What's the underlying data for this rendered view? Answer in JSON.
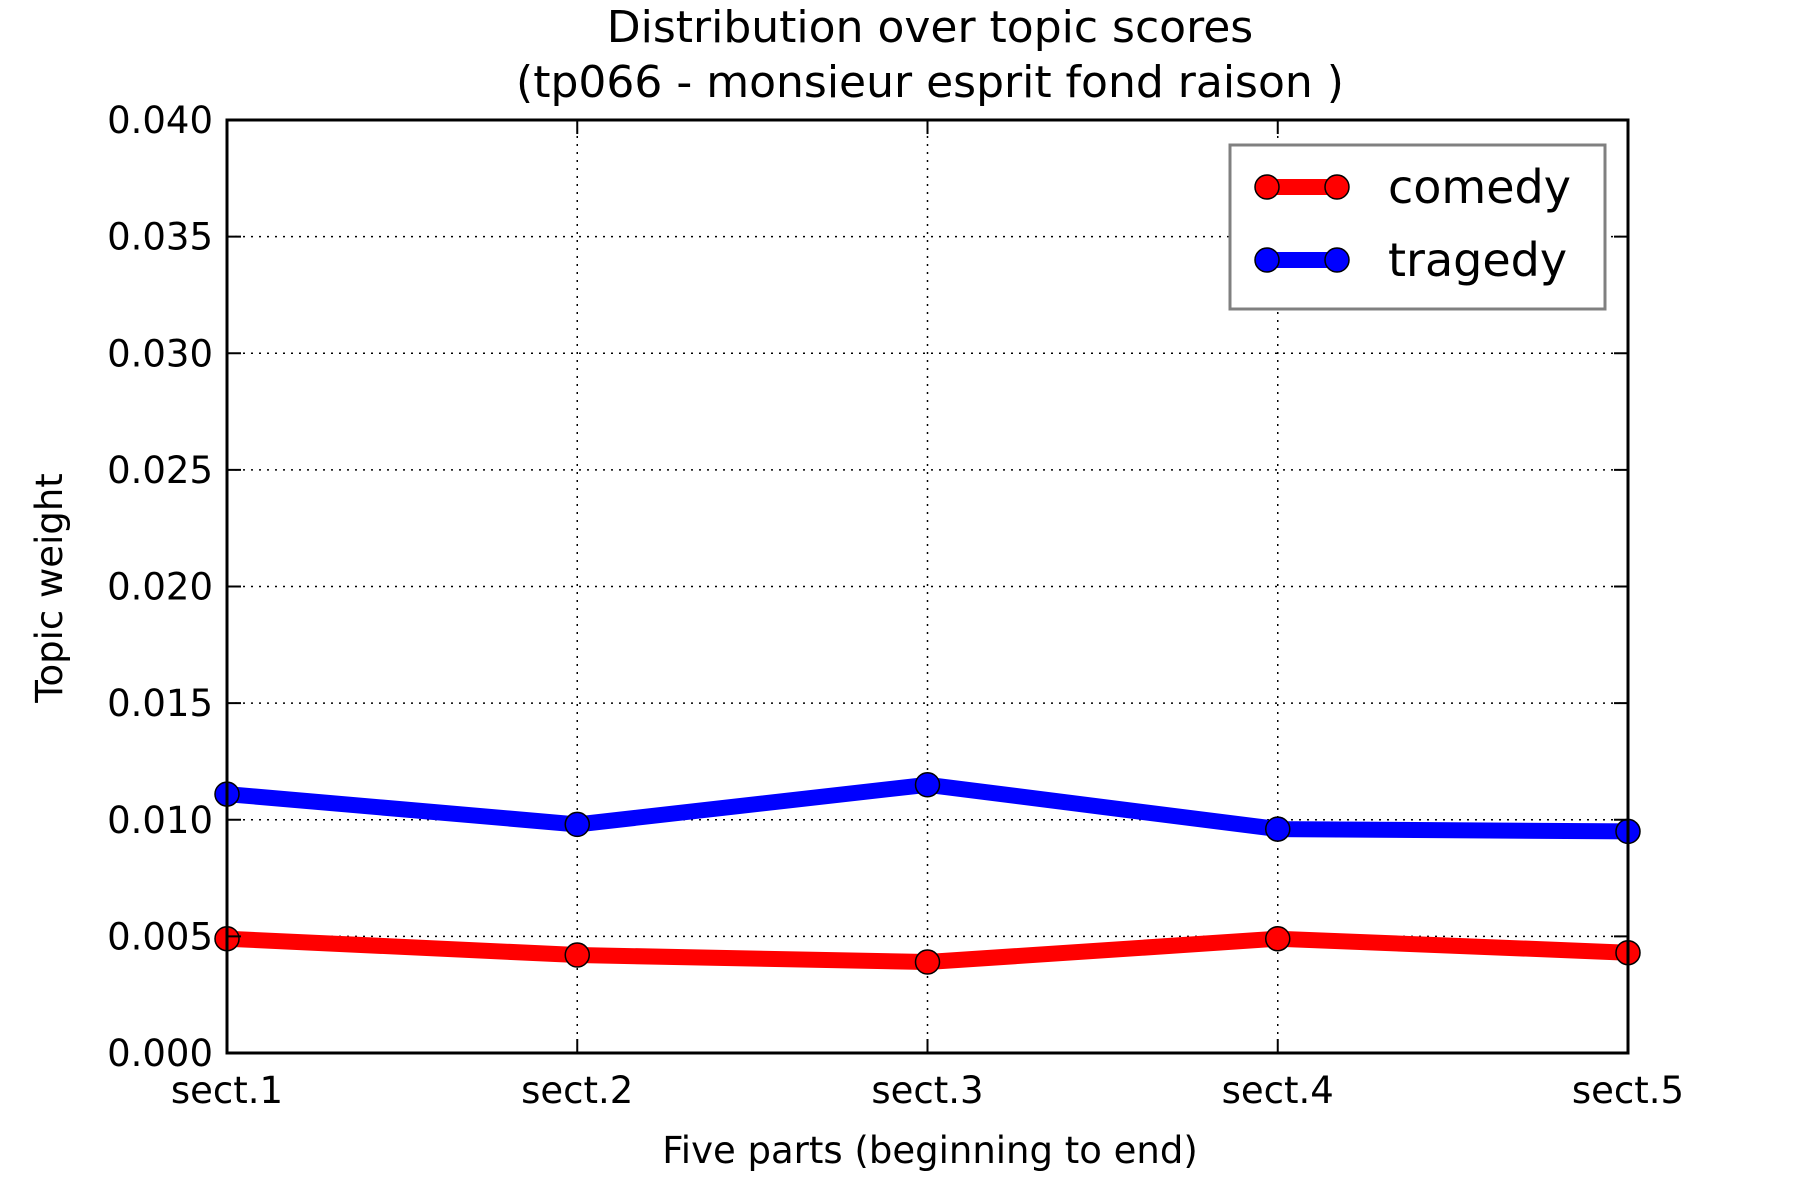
{
  "chart_data": {
    "type": "line",
    "title_line1": "Distribution over topic scores",
    "title_line2": "(tp066 - monsieur esprit fond raison )",
    "xlabel": "Five parts (beginning to end)",
    "ylabel": "Topic weight",
    "categories": [
      "sect.1",
      "sect.2",
      "sect.3",
      "sect.4",
      "sect.5"
    ],
    "ylim": [
      0,
      0.04
    ],
    "yticks": [
      "0.000",
      "0.005",
      "0.010",
      "0.015",
      "0.020",
      "0.025",
      "0.030",
      "0.035",
      "0.040"
    ],
    "grid": true,
    "legend_position": "top-right",
    "series": [
      {
        "name": "comedy",
        "color": "#ff0000",
        "values": [
          0.0049,
          0.0042,
          0.0039,
          0.0049,
          0.0043
        ]
      },
      {
        "name": "tragedy",
        "color": "#0000ff",
        "values": [
          0.0111,
          0.0098,
          0.0115,
          0.0096,
          0.0095
        ]
      }
    ]
  }
}
